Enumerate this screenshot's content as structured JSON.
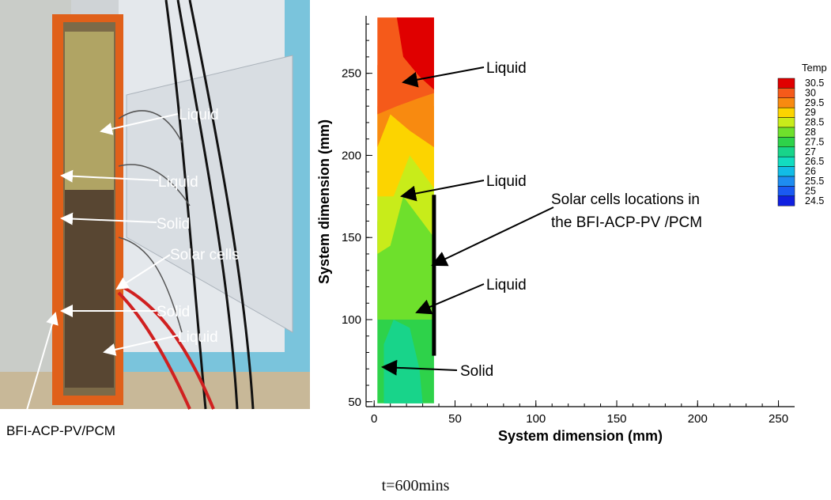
{
  "photo": {
    "caption": "BFI-ACP-PV/PCM",
    "labels": [
      "Liquid",
      "Liquid",
      "Solid",
      "Solar cells",
      "Solid",
      "Liquid"
    ]
  },
  "plot": {
    "xlabel": "System dimension (mm)",
    "ylabel": "System dimension (mm)",
    "xticks": [
      "0",
      "50",
      "100",
      "150",
      "200",
      "250"
    ],
    "yticks": [
      "50",
      "100",
      "150",
      "200",
      "250"
    ],
    "xlim": [
      -5,
      260
    ],
    "ylim": [
      47,
      285
    ],
    "annotations": [
      "Liquid",
      "Liquid",
      "Liquid",
      "Solid"
    ],
    "solar_cell_note": [
      "Solar cells locations in",
      "the BFI-ACP-PV /PCM"
    ],
    "legend": {
      "title": "Temp",
      "levels": [
        "30.5",
        "30",
        "29.5",
        "29",
        "28.5",
        "28",
        "27.5",
        "27",
        "26.5",
        "26",
        "25.5",
        "25",
        "24.5"
      ],
      "colors": [
        "#e00000",
        "#f55a1a",
        "#f88a10",
        "#fcd400",
        "#c8ec1a",
        "#6ee02c",
        "#2ed24a",
        "#18d48a",
        "#12dcc0",
        "#12bce6",
        "#1e8cf0",
        "#1a5af2",
        "#1020e0"
      ]
    }
  },
  "time_caption": "t=600mins"
}
